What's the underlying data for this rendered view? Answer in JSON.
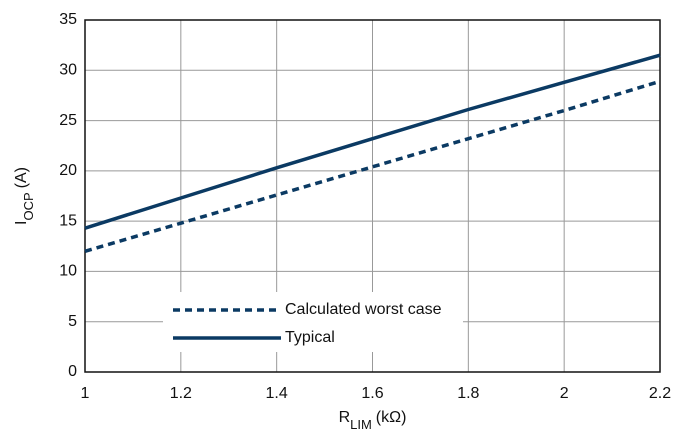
{
  "chart_data": {
    "type": "line",
    "xlabel": [
      "R",
      "LIM",
      "(kΩ)"
    ],
    "ylabel": [
      "I",
      "OCP",
      "(A)"
    ],
    "x": [
      1,
      1.2,
      1.4,
      1.6,
      1.8,
      2,
      2.2
    ],
    "series": [
      {
        "name": "Calculated worst case",
        "color": "#0b3a63",
        "dash": "dashed",
        "values": [
          12,
          14.8,
          17.6,
          20.4,
          23.2,
          26,
          28.9
        ]
      },
      {
        "name": "Typical",
        "color": "#0b3a63",
        "dash": "solid",
        "values": [
          14.3,
          17.3,
          20.3,
          23.2,
          26.1,
          28.8,
          31.5
        ]
      }
    ],
    "xlim": [
      1,
      2.2
    ],
    "xticks": [
      1,
      1.2,
      1.4,
      1.6,
      1.8,
      2,
      2.2
    ],
    "ylim": [
      0,
      35
    ],
    "yticks": [
      0,
      5,
      10,
      15,
      20,
      25,
      30,
      35
    ],
    "grid": true,
    "legend": "lower left"
  }
}
